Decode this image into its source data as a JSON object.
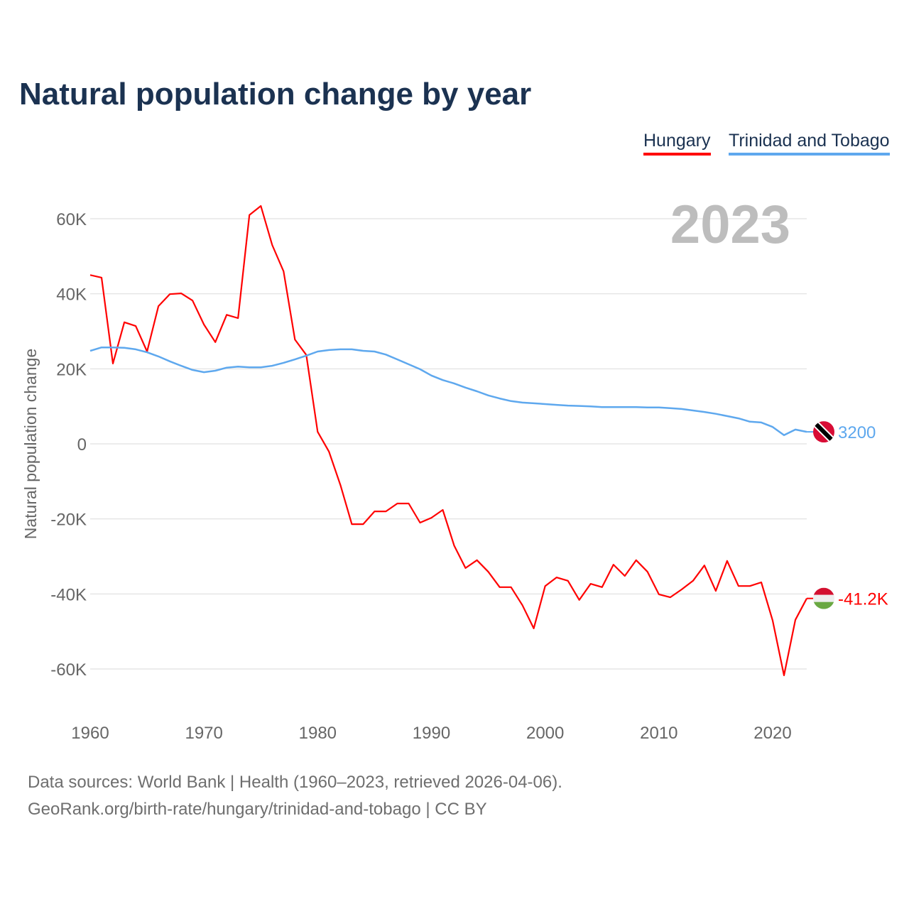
{
  "chart_data": {
    "type": "line",
    "title": "Natural population change by year",
    "ylabel": "Natural population change",
    "xlabel": "",
    "year_label": "2023",
    "xlim": [
      1960,
      2023
    ],
    "ylim": [
      -70000,
      70000
    ],
    "x_ticks": [
      1960,
      1970,
      1980,
      1990,
      2000,
      2010,
      2020
    ],
    "x_tick_labels": [
      "1960",
      "1970",
      "1980",
      "1990",
      "2000",
      "2010",
      "2020"
    ],
    "y_ticks": [
      60000,
      40000,
      20000,
      0,
      -20000,
      -40000,
      -60000
    ],
    "y_tick_labels": [
      "60K",
      "40K",
      "20K",
      "0",
      "-20K",
      "-40K",
      "-60K"
    ],
    "grid": true,
    "legend_position": "top-right",
    "x": [
      1960,
      1961,
      1962,
      1963,
      1964,
      1965,
      1966,
      1967,
      1968,
      1969,
      1970,
      1971,
      1972,
      1973,
      1974,
      1975,
      1976,
      1977,
      1978,
      1979,
      1980,
      1981,
      1982,
      1983,
      1984,
      1985,
      1986,
      1987,
      1988,
      1989,
      1990,
      1991,
      1992,
      1993,
      1994,
      1995,
      1996,
      1997,
      1998,
      1999,
      2000,
      2001,
      2002,
      2003,
      2004,
      2005,
      2006,
      2007,
      2008,
      2009,
      2010,
      2011,
      2012,
      2013,
      2014,
      2015,
      2016,
      2017,
      2018,
      2019,
      2020,
      2021,
      2022,
      2023
    ],
    "series": [
      {
        "name": "Hungary",
        "color": "#ff0000",
        "end_label": "-41.2K",
        "flag": "hungary-flag",
        "values": [
          45000,
          44300,
          21400,
          32400,
          31400,
          24600,
          36700,
          39900,
          40100,
          38200,
          31800,
          27100,
          34400,
          33500,
          61000,
          63400,
          53000,
          46000,
          27800,
          23700,
          3200,
          -2100,
          -11000,
          -21400,
          -21400,
          -18000,
          -18000,
          -15900,
          -15900,
          -21000,
          -19700,
          -17600,
          -27100,
          -33100,
          -31000,
          -34100,
          -38200,
          -38200,
          -43000,
          -49200,
          -37900,
          -35600,
          -36500,
          -41600,
          -37300,
          -38200,
          -32200,
          -35200,
          -31000,
          -34100,
          -40100,
          -40900,
          -38800,
          -36500,
          -32400,
          -39200,
          -31200,
          -37900,
          -37900,
          -36900,
          -47100,
          -61700,
          -46900,
          -41200
        ]
      },
      {
        "name": "Trinidad and Tobago",
        "color": "#5ea8ee",
        "end_label": "3200",
        "flag": "trinidad-and-tobago-flag",
        "values": [
          24800,
          25700,
          25700,
          25600,
          25200,
          24400,
          23300,
          22000,
          20800,
          19700,
          19100,
          19500,
          20300,
          20600,
          20400,
          20400,
          20800,
          21600,
          22500,
          23500,
          24600,
          25000,
          25200,
          25200,
          24800,
          24600,
          23800,
          22500,
          21200,
          19900,
          18200,
          17000,
          16100,
          15000,
          14000,
          12900,
          12100,
          11400,
          11000,
          10800,
          10600,
          10400,
          10200,
          10100,
          10000,
          9800,
          9800,
          9800,
          9800,
          9700,
          9700,
          9500,
          9300,
          8900,
          8500,
          8000,
          7400,
          6800,
          5900,
          5700,
          4500,
          2300,
          3800,
          3200
        ]
      }
    ]
  },
  "footer": {
    "line1": "Data sources: World Bank | Health (1960–2023, retrieved 2026-04-06).",
    "line2": "GeoRank.org/birth-rate/hungary/trinidad-and-tobago | CC BY"
  }
}
